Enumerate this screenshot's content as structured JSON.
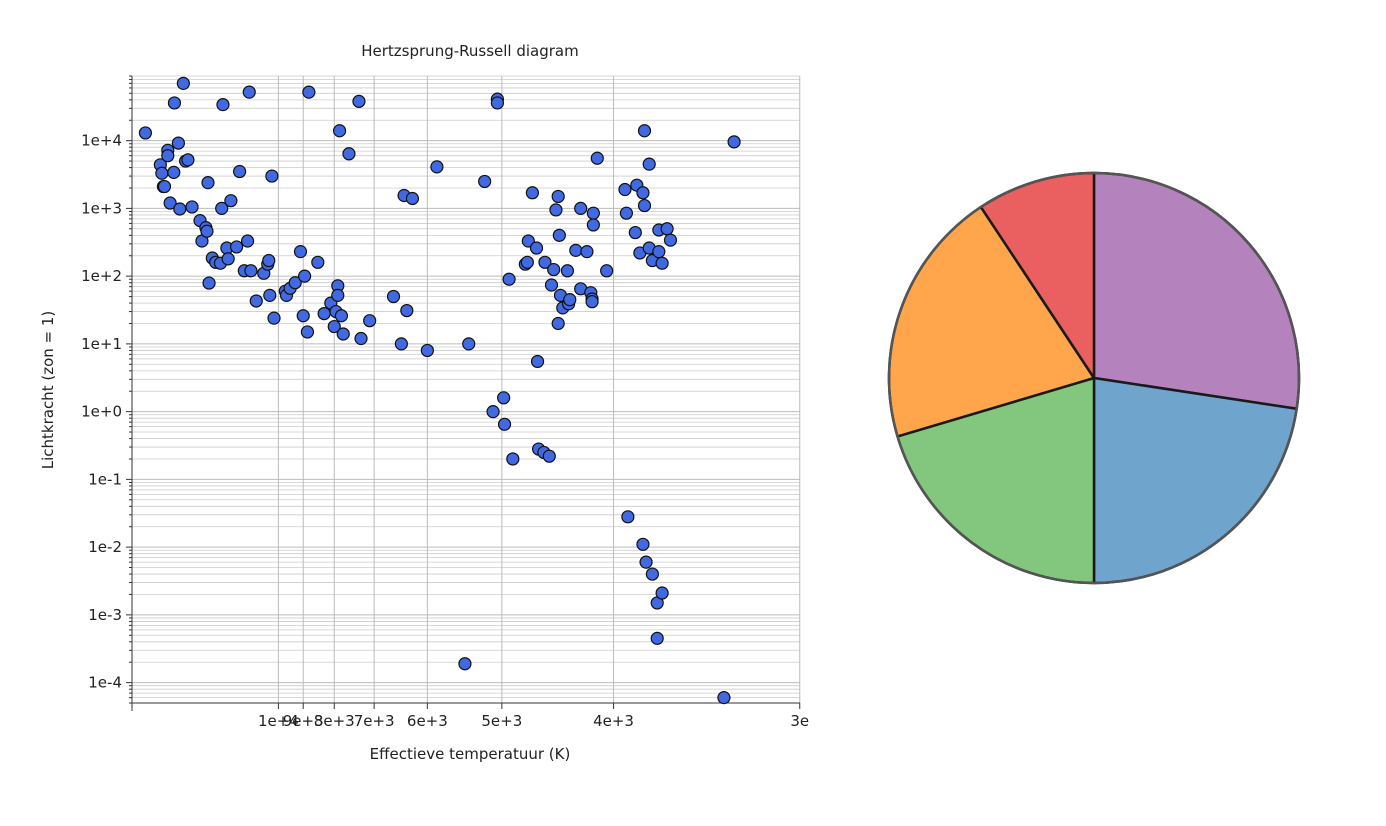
{
  "chart_data": [
    {
      "type": "scatter",
      "title": "Hertzsprung-Russell diagram",
      "xlabel": "Effectieve temperatuur (K)",
      "ylabel": "Lichtkracht (zon = 1)",
      "x_scale": "reciprocal",
      "x_reversed": true,
      "y_scale": "log",
      "xlim": [
        29000,
        2999
      ],
      "ylim": [
        5e-05,
        90000.0
      ],
      "x_ticks": [
        10000,
        9000,
        8000,
        7000,
        6000,
        5000,
        4000,
        3000
      ],
      "x_tick_labels": [
        "1e+4",
        "9e+3",
        "8e+3",
        "7e+3",
        "6e+3",
        "5e+3",
        "4e+3",
        "3e"
      ],
      "y_ticks": [
        0.0001,
        0.001,
        0.01,
        0.1,
        1,
        10,
        100,
        1000,
        10000
      ],
      "y_tick_labels": [
        "1e-4",
        "1e-3",
        "1e-2",
        "1e-1",
        "1e+0",
        "1e+1",
        "1e+2",
        "1e+3",
        "1e+4"
      ],
      "grid": true,
      "marker_color": "#4169e1",
      "marker_edge": "#111111",
      "points": [
        [
          24700,
          13000
        ],
        [
          21200,
          4400
        ],
        [
          20900,
          3300
        ],
        [
          20600,
          2100
        ],
        [
          20400,
          2100
        ],
        [
          19800,
          7200
        ],
        [
          19800,
          6000
        ],
        [
          19400,
          1200
        ],
        [
          18800,
          3400
        ],
        [
          18700,
          36000
        ],
        [
          18100,
          9200
        ],
        [
          17900,
          980
        ],
        [
          17400,
          70000
        ],
        [
          17100,
          5000
        ],
        [
          16800,
          5200
        ],
        [
          16300,
          1050
        ],
        [
          15400,
          660
        ],
        [
          15200,
          330
        ],
        [
          14800,
          520
        ],
        [
          14700,
          460
        ],
        [
          14600,
          2400
        ],
        [
          14500,
          79
        ],
        [
          14200,
          185
        ],
        [
          13900,
          160
        ],
        [
          13500,
          155
        ],
        [
          13400,
          1000
        ],
        [
          13300,
          34000
        ],
        [
          13000,
          260
        ],
        [
          12900,
          180
        ],
        [
          12700,
          1300
        ],
        [
          12300,
          270
        ],
        [
          12100,
          3500
        ],
        [
          11800,
          120
        ],
        [
          11600,
          330
        ],
        [
          11500,
          52000
        ],
        [
          11400,
          120
        ],
        [
          11100,
          43
        ],
        [
          10700,
          110
        ],
        [
          10500,
          150
        ],
        [
          10450,
          170
        ],
        [
          10400,
          52
        ],
        [
          10300,
          3000
        ],
        [
          10200,
          24
        ],
        [
          9700,
          60
        ],
        [
          9650,
          52
        ],
        [
          9500,
          66
        ],
        [
          9300,
          80
        ],
        [
          9100,
          230
        ],
        [
          9000,
          26
        ],
        [
          8950,
          100
        ],
        [
          8850,
          15
        ],
        [
          8800,
          52000
        ],
        [
          8500,
          160
        ],
        [
          8300,
          28
        ],
        [
          8100,
          40
        ],
        [
          8000,
          18
        ],
        [
          7950,
          30
        ],
        [
          7900,
          72
        ],
        [
          7900,
          52
        ],
        [
          7850,
          14000
        ],
        [
          7800,
          26
        ],
        [
          7750,
          14
        ],
        [
          7600,
          6400
        ],
        [
          7350,
          38000
        ],
        [
          7300,
          12
        ],
        [
          7100,
          22
        ],
        [
          6600,
          50
        ],
        [
          6450,
          10
        ],
        [
          6400,
          1550
        ],
        [
          6350,
          31
        ],
        [
          6250,
          1400
        ],
        [
          6000,
          8
        ],
        [
          5850,
          4100
        ],
        [
          5450,
          0.00019
        ],
        [
          5400,
          10
        ],
        [
          5200,
          2500
        ],
        [
          5100,
          1
        ],
        [
          5050,
          41000
        ],
        [
          5050,
          36000
        ],
        [
          4980,
          1.6
        ],
        [
          4970,
          0.65
        ],
        [
          4920,
          90
        ],
        [
          4880,
          0.2
        ],
        [
          4750,
          150
        ],
        [
          4730,
          160
        ],
        [
          4720,
          330
        ],
        [
          4680,
          1700
        ],
        [
          4640,
          260
        ],
        [
          4630,
          5.5
        ],
        [
          4620,
          0.28
        ],
        [
          4570,
          0.25
        ],
        [
          4560,
          160
        ],
        [
          4520,
          0.22
        ],
        [
          4500,
          74
        ],
        [
          4480,
          125
        ],
        [
          4460,
          950
        ],
        [
          4440,
          1500
        ],
        [
          4440,
          20
        ],
        [
          4430,
          400
        ],
        [
          4420,
          52
        ],
        [
          4400,
          34
        ],
        [
          4360,
          120
        ],
        [
          4350,
          39
        ],
        [
          4340,
          45
        ],
        [
          4290,
          240
        ],
        [
          4250,
          1000
        ],
        [
          4250,
          65
        ],
        [
          4200,
          230
        ],
        [
          4170,
          57
        ],
        [
          4160,
          46
        ],
        [
          4160,
          42
        ],
        [
          4150,
          850
        ],
        [
          4150,
          570
        ],
        [
          4120,
          5500
        ],
        [
          4050,
          120
        ],
        [
          3920,
          1900
        ],
        [
          3910,
          850
        ],
        [
          3900,
          0.028
        ],
        [
          3850,
          440
        ],
        [
          3840,
          2200
        ],
        [
          3820,
          220
        ],
        [
          3800,
          0.011
        ],
        [
          3800,
          1700
        ],
        [
          3790,
          14000
        ],
        [
          3790,
          1100
        ],
        [
          3780,
          0.006
        ],
        [
          3760,
          4500
        ],
        [
          3760,
          260
        ],
        [
          3740,
          170
        ],
        [
          3740,
          0.004
        ],
        [
          3710,
          0.0015
        ],
        [
          3710,
          0.00045
        ],
        [
          3700,
          480
        ],
        [
          3700,
          230
        ],
        [
          3680,
          155
        ],
        [
          3680,
          0.0021
        ],
        [
          3650,
          500
        ],
        [
          3630,
          340
        ],
        [
          3340,
          6e-05
        ],
        [
          3290,
          9600
        ]
      ]
    },
    {
      "type": "pie",
      "values": [
        27.4,
        22.6,
        20.4,
        20.3,
        9.3
      ],
      "colors": [
        "#b482bd",
        "#6fa4cc",
        "#83c77f",
        "#ffa54b",
        "#ea5f60"
      ]
    }
  ]
}
